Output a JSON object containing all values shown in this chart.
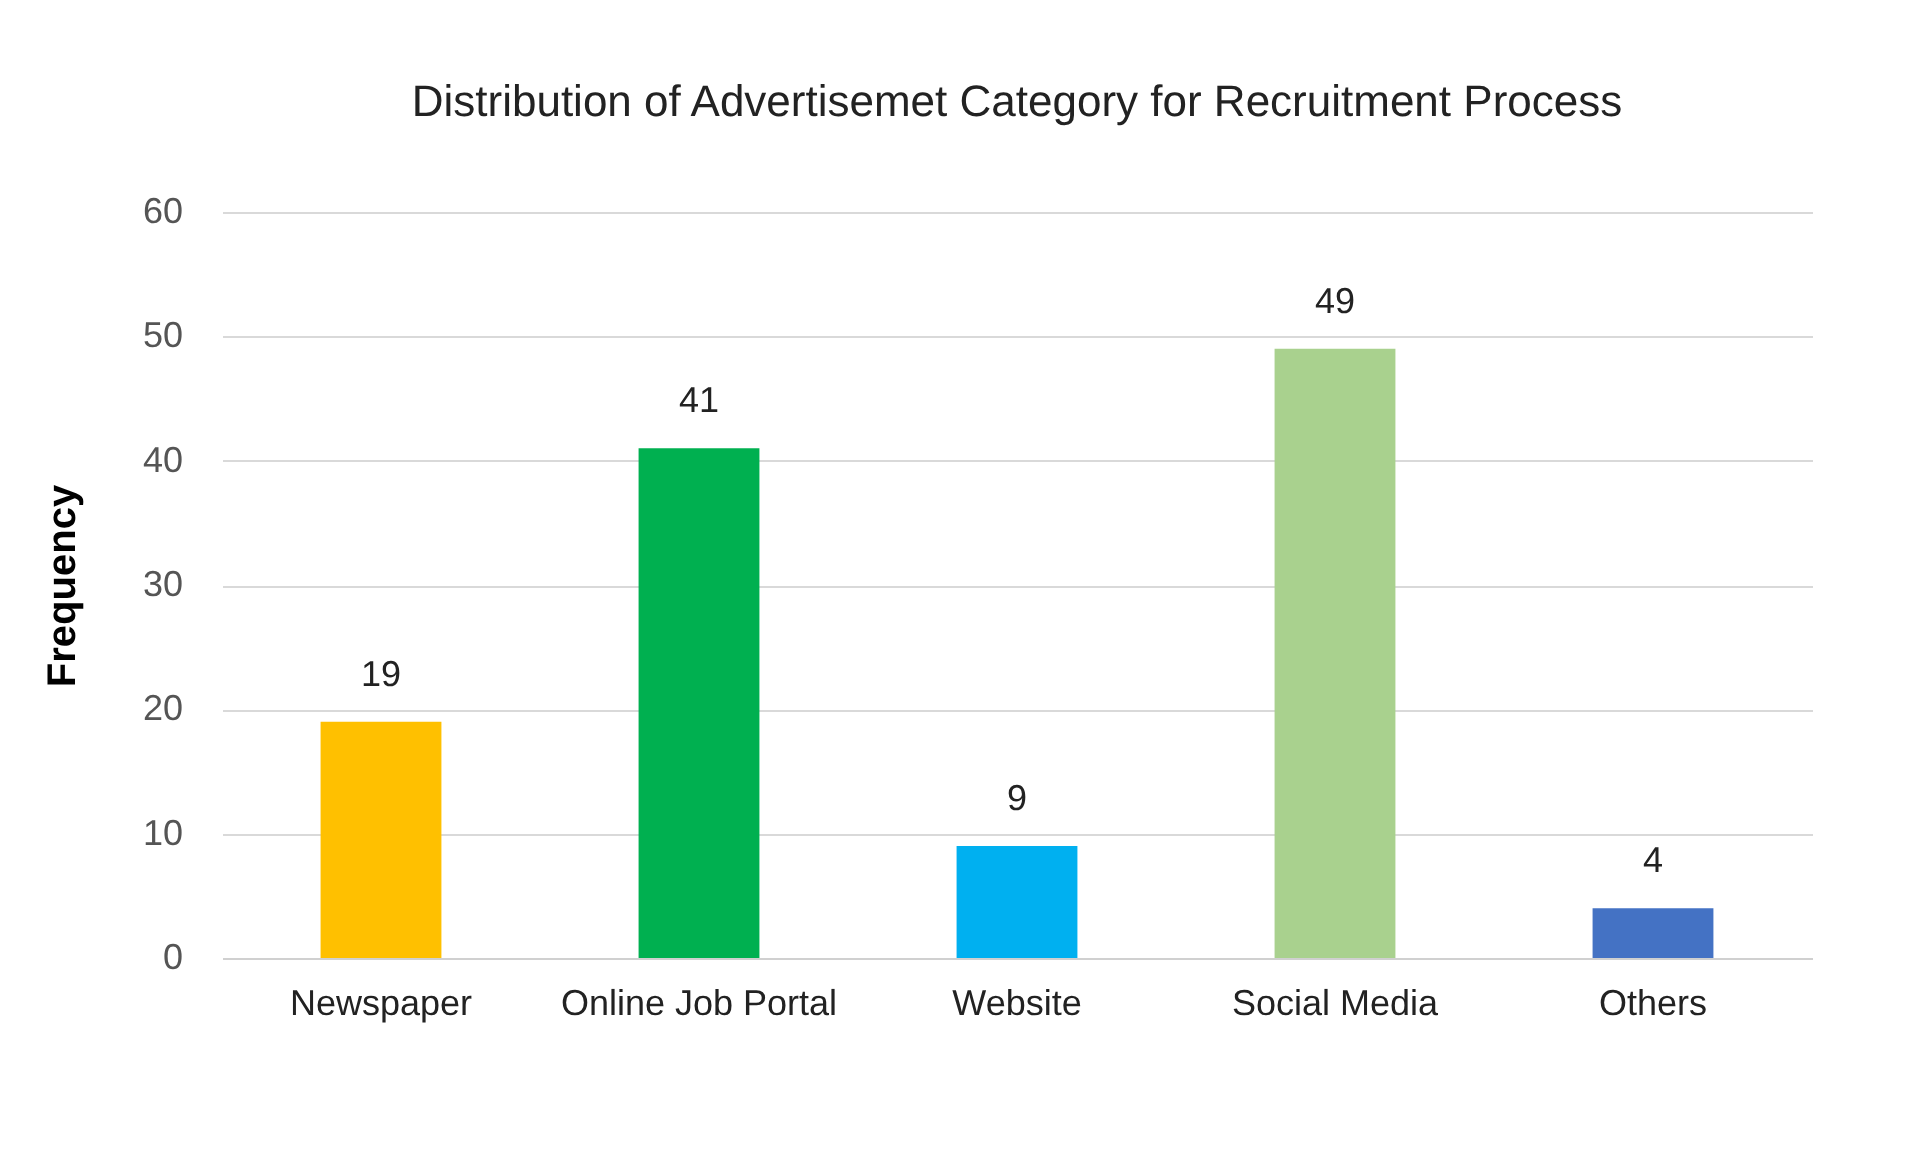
{
  "chart_data": {
    "type": "bar",
    "title": "Distribution of Advertisemet Category for Recruitment Process",
    "ylabel": "Frequency",
    "categories": [
      "Newspaper",
      "Online Job Portal",
      "Website",
      "Social Media",
      "Others"
    ],
    "values": [
      19,
      41,
      9,
      49,
      4
    ],
    "colors": [
      "#ffc000",
      "#00b050",
      "#00b0f0",
      "#a9d18e",
      "#4472c4"
    ],
    "ylim": [
      0,
      60
    ],
    "yticks": [
      0,
      10,
      20,
      30,
      40,
      50,
      60
    ],
    "grid": "y",
    "data_labels": true
  }
}
